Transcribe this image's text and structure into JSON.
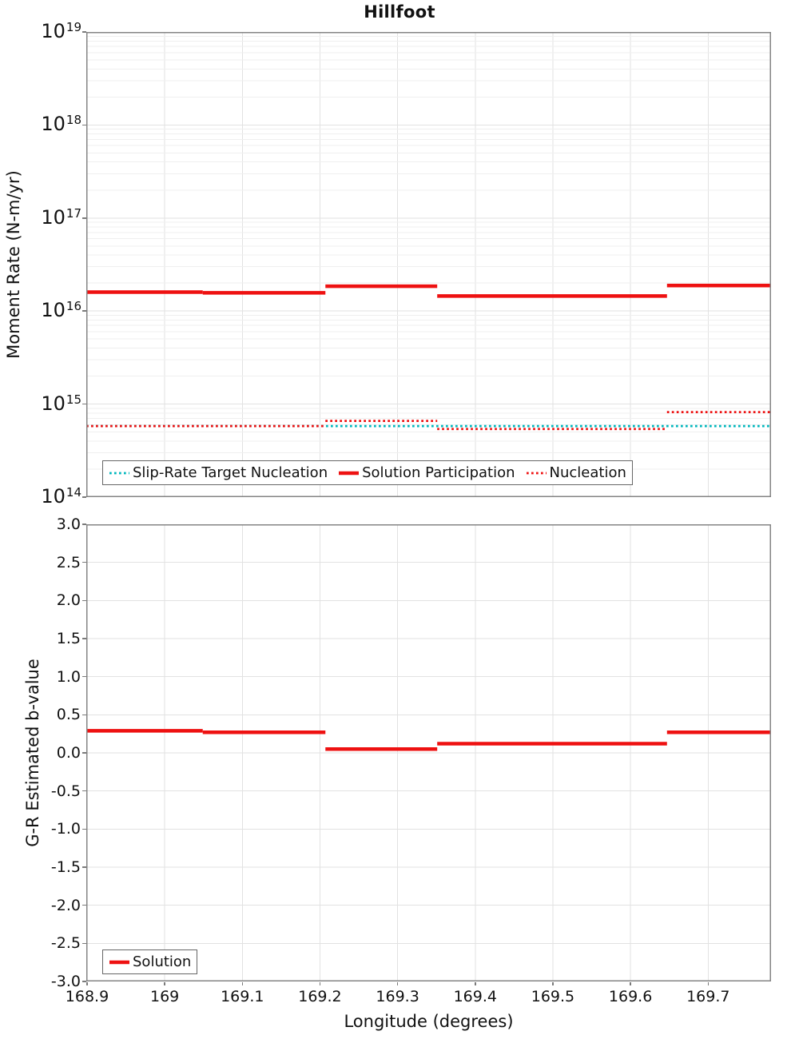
{
  "title": "Hillfoot",
  "colors": {
    "solution_red": "#ee1111",
    "slip_rate_cyan": "#00b7bd",
    "frame_gray": "#848484",
    "grid_major": "#e2e2e2",
    "grid_minor": "#efefef"
  },
  "chart_data": [
    {
      "type": "line",
      "title": "Hillfoot",
      "ylabel": "Moment Rate (N-m/yr)",
      "yscale": "log",
      "ylim": [
        100000000000000.0,
        1e+19
      ],
      "ytick_exponents": [
        19,
        18,
        17,
        16,
        15,
        14
      ],
      "xlim": [
        168.899,
        169.781
      ],
      "xticks": {
        "values": [
          168.9,
          169.0,
          169.1,
          169.2,
          169.3,
          169.4,
          169.5,
          169.6,
          169.7
        ],
        "labels_visible": false
      },
      "grid": true,
      "legend_position": "inside-bottom-left",
      "series": [
        {
          "name": "Slip-Rate Target Nucleation",
          "color": "#00b7bd",
          "style": "dotted",
          "segments": [
            {
              "x0": 168.899,
              "x1": 169.781,
              "y": 580000000000000.0
            }
          ]
        },
        {
          "name": "Solution Participation",
          "color": "#ee1111",
          "style": "solid",
          "segments": [
            {
              "x0": 168.899,
              "x1": 169.049,
              "y": 1.6e+16
            },
            {
              "x0": 169.049,
              "x1": 169.207,
              "y": 1.57e+16
            },
            {
              "x0": 169.207,
              "x1": 169.351,
              "y": 1.85e+16
            },
            {
              "x0": 169.351,
              "x1": 169.647,
              "y": 1.45e+16
            },
            {
              "x0": 169.647,
              "x1": 169.781,
              "y": 1.88e+16
            }
          ]
        },
        {
          "name": "Nucleation",
          "color": "#ee1111",
          "style": "dotted",
          "segments": [
            {
              "x0": 168.899,
              "x1": 169.207,
              "y": 580000000000000.0
            },
            {
              "x0": 169.207,
              "x1": 169.351,
              "y": 660000000000000.0
            },
            {
              "x0": 169.351,
              "x1": 169.647,
              "y": 540000000000000.0
            },
            {
              "x0": 169.647,
              "x1": 169.781,
              "y": 820000000000000.0
            }
          ]
        }
      ]
    },
    {
      "type": "line",
      "ylabel": "G-R Estimated b-value",
      "yscale": "linear",
      "ylim": [
        -3.0,
        3.0
      ],
      "yticks": {
        "values": [
          3.0,
          2.5,
          2.0,
          1.5,
          1.0,
          0.5,
          0.0,
          -0.5,
          -1.0,
          -1.5,
          -2.0,
          -2.5,
          -3.0
        ],
        "labels": [
          "3.0",
          "2.5",
          "2.0",
          "1.5",
          "1.0",
          "0.5",
          "0.0",
          "-0.5",
          "-1.0",
          "-1.5",
          "-2.0",
          "-2.5",
          "-3.0"
        ]
      },
      "xlabel": "Longitude (degrees)",
      "xlim": [
        168.899,
        169.781
      ],
      "xticks": {
        "values": [
          168.9,
          169.0,
          169.1,
          169.2,
          169.3,
          169.4,
          169.5,
          169.6,
          169.7
        ],
        "labels": [
          "168.9",
          "169",
          "169.1",
          "169.2",
          "169.3",
          "169.4",
          "169.5",
          "169.6",
          "169.7"
        ],
        "labels_visible": true
      },
      "grid": true,
      "legend_position": "inside-bottom-left",
      "series": [
        {
          "name": "Solution",
          "color": "#ee1111",
          "style": "solid",
          "segments": [
            {
              "x0": 168.899,
              "x1": 169.049,
              "y": 0.29
            },
            {
              "x0": 169.049,
              "x1": 169.207,
              "y": 0.27
            },
            {
              "x0": 169.207,
              "x1": 169.351,
              "y": 0.05
            },
            {
              "x0": 169.351,
              "x1": 169.647,
              "y": 0.12
            },
            {
              "x0": 169.647,
              "x1": 169.781,
              "y": 0.27
            }
          ]
        }
      ]
    }
  ]
}
